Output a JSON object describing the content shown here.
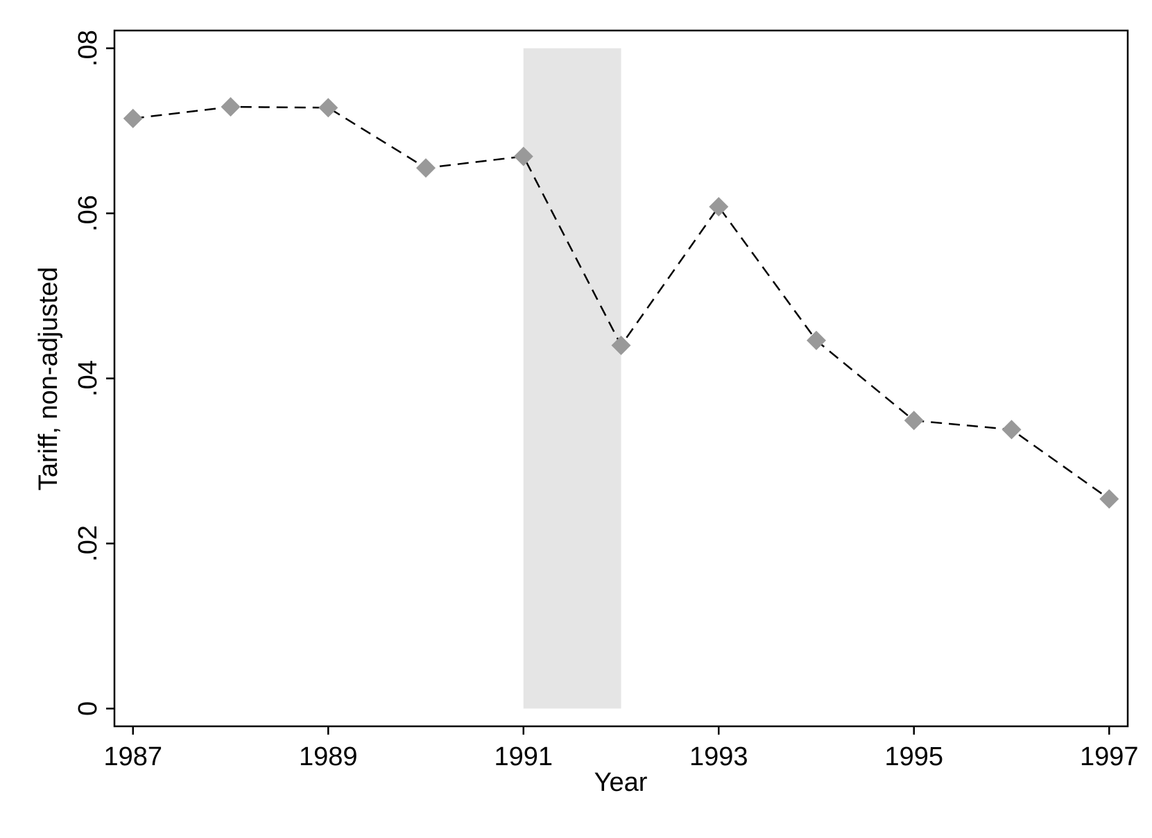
{
  "chart_data": {
    "type": "line",
    "x_label": "Year",
    "y_label": "Tariff, non-adjusted",
    "x": [
      1987,
      1988,
      1989,
      1990,
      1991,
      1992,
      1993,
      1994,
      1995,
      1996,
      1997
    ],
    "series": [
      {
        "color": "#999999",
        "line_color": "#000000",
        "dashed": true,
        "marker": "diamond",
        "values": [
          0.0715,
          0.0729,
          0.0728,
          0.0655,
          0.0669,
          0.044,
          0.0608,
          0.0446,
          0.0349,
          0.0338,
          0.0254
        ]
      }
    ],
    "shaded_region": {
      "x": [
        1991,
        1992
      ],
      "y": [
        0,
        0.08
      ],
      "color": "#e5e5e5"
    },
    "xlim": [
      1986.81,
      1997.19
    ],
    "ylim": [
      -0.00215,
      0.08215
    ],
    "xticks": [
      1987,
      1989,
      1991,
      1993,
      1995,
      1997
    ],
    "yticks": [
      0,
      {
        "value": 0.02,
        "label": ".02"
      },
      {
        "value": 0.04,
        "label": ".04"
      },
      {
        "value": 0.06,
        "label": ".06"
      },
      {
        "value": 0.08,
        "label": ".08"
      }
    ],
    "grid": false
  }
}
